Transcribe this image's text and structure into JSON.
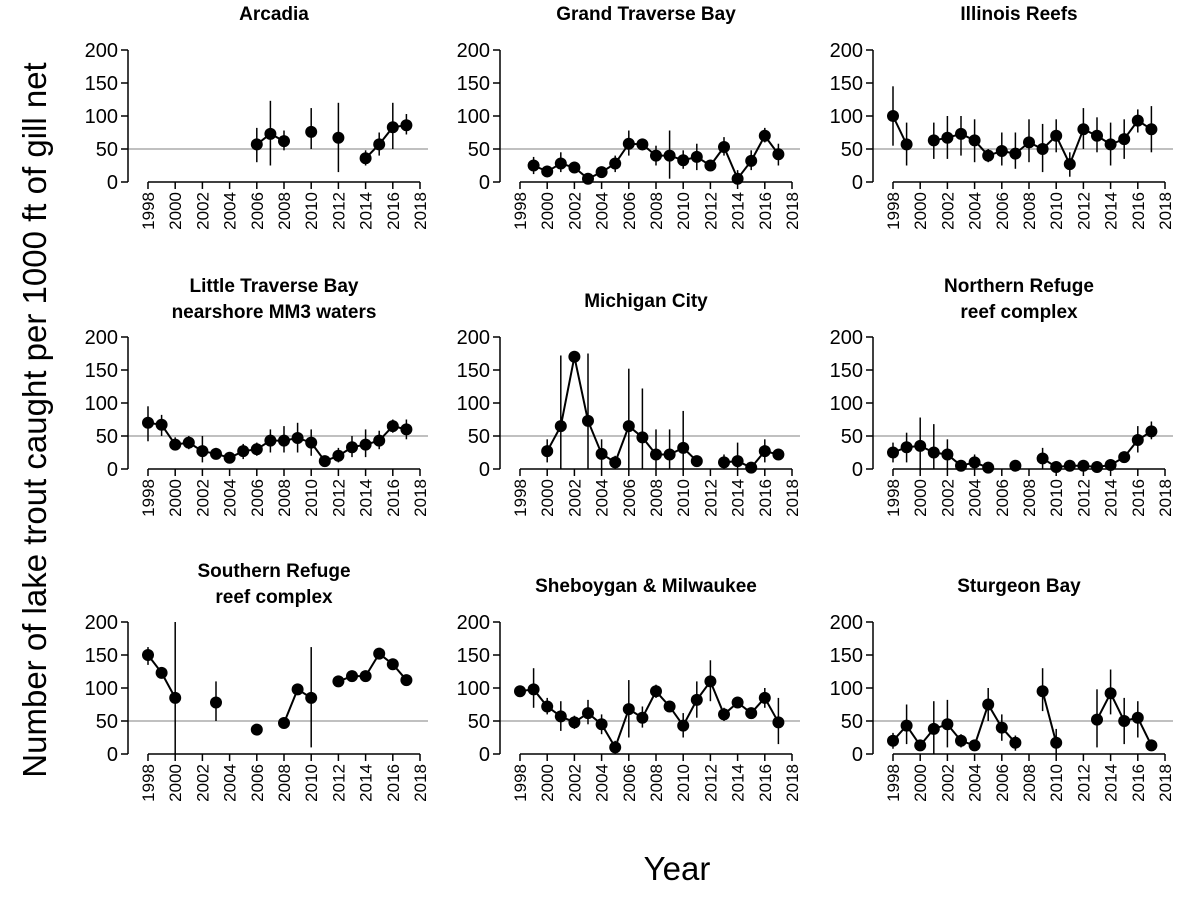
{
  "ylabel": "Number of lake trout caught per 1000 ft of gill net",
  "xlabel": "Year",
  "chart_data": [
    {
      "type": "line",
      "title": [
        "Arcadia"
      ],
      "color": "#000000",
      "hline": 50,
      "xlim": [
        1998,
        2018
      ],
      "ylim": [
        0,
        200
      ],
      "xticks": [
        1998,
        2000,
        2002,
        2004,
        2006,
        2008,
        2010,
        2012,
        2014,
        2016,
        2018
      ],
      "yticks": [
        0,
        50,
        100,
        150,
        200
      ],
      "x": [
        1998,
        1999,
        2000,
        2001,
        2002,
        2003,
        2004,
        2005,
        2006,
        2007,
        2008,
        2009,
        2010,
        2011,
        2012,
        2013,
        2014,
        2015,
        2016,
        2017
      ],
      "values": [
        null,
        null,
        null,
        null,
        null,
        null,
        null,
        null,
        57,
        73,
        62,
        null,
        76,
        null,
        67,
        null,
        36,
        57,
        83,
        86
      ],
      "lower": [
        null,
        null,
        null,
        null,
        null,
        null,
        null,
        null,
        30,
        25,
        48,
        null,
        50,
        null,
        15,
        null,
        25,
        40,
        50,
        72
      ],
      "upper": [
        null,
        null,
        null,
        null,
        null,
        null,
        null,
        null,
        82,
        123,
        78,
        null,
        112,
        null,
        120,
        null,
        48,
        75,
        120,
        103
      ]
    },
    {
      "type": "line",
      "title": [
        "Grand Traverse Bay"
      ],
      "color": "#000000",
      "hline": 50,
      "xlim": [
        1998,
        2018
      ],
      "ylim": [
        0,
        200
      ],
      "xticks": [
        1998,
        2000,
        2002,
        2004,
        2006,
        2008,
        2010,
        2012,
        2014,
        2016,
        2018
      ],
      "yticks": [
        0,
        50,
        100,
        150,
        200
      ],
      "x": [
        1998,
        1999,
        2000,
        2001,
        2002,
        2003,
        2004,
        2005,
        2006,
        2007,
        2008,
        2009,
        2010,
        2011,
        2012,
        2013,
        2014,
        2015,
        2016,
        2017
      ],
      "values": [
        null,
        25,
        16,
        28,
        22,
        5,
        15,
        28,
        58,
        57,
        40,
        40,
        33,
        38,
        25,
        53,
        5,
        32,
        70,
        42
      ],
      "lower": [
        null,
        12,
        8,
        15,
        18,
        2,
        8,
        15,
        40,
        48,
        25,
        5,
        20,
        18,
        18,
        40,
        0,
        18,
        60,
        25
      ],
      "upper": [
        null,
        38,
        25,
        45,
        28,
        8,
        22,
        40,
        78,
        65,
        55,
        78,
        48,
        58,
        32,
        68,
        18,
        48,
        82,
        58
      ]
    },
    {
      "type": "line",
      "title": [
        "Illinois Reefs"
      ],
      "color": "#000000",
      "hline": 50,
      "xlim": [
        1998,
        2018
      ],
      "ylim": [
        0,
        200
      ],
      "xticks": [
        1998,
        2000,
        2002,
        2004,
        2006,
        2008,
        2010,
        2012,
        2014,
        2016,
        2018
      ],
      "yticks": [
        0,
        50,
        100,
        150,
        200
      ],
      "x": [
        1998,
        1999,
        2000,
        2001,
        2002,
        2003,
        2004,
        2005,
        2006,
        2007,
        2008,
        2009,
        2010,
        2011,
        2012,
        2013,
        2014,
        2015,
        2016,
        2017
      ],
      "values": [
        100,
        57,
        null,
        63,
        67,
        73,
        63,
        40,
        47,
        43,
        60,
        50,
        70,
        27,
        80,
        70,
        57,
        65,
        93,
        80
      ],
      "lower": [
        55,
        25,
        null,
        35,
        35,
        40,
        30,
        30,
        25,
        20,
        30,
        15,
        45,
        8,
        50,
        45,
        25,
        35,
        75,
        45
      ],
      "upper": [
        145,
        90,
        null,
        90,
        100,
        100,
        95,
        50,
        75,
        75,
        95,
        88,
        95,
        45,
        112,
        98,
        90,
        95,
        110,
        115
      ]
    },
    {
      "type": "line",
      "title": [
        "Little Traverse Bay",
        "nearshore MM3 waters"
      ],
      "color": "#000000",
      "hline": 50,
      "xlim": [
        1998,
        2018
      ],
      "ylim": [
        0,
        200
      ],
      "xticks": [
        1998,
        2000,
        2002,
        2004,
        2006,
        2008,
        2010,
        2012,
        2014,
        2016,
        2018
      ],
      "yticks": [
        0,
        50,
        100,
        150,
        200
      ],
      "x": [
        1998,
        1999,
        2000,
        2001,
        2002,
        2003,
        2004,
        2005,
        2006,
        2007,
        2008,
        2009,
        2010,
        2011,
        2012,
        2013,
        2014,
        2015,
        2016,
        2017
      ],
      "values": [
        70,
        67,
        37,
        40,
        27,
        23,
        17,
        27,
        30,
        43,
        43,
        47,
        40,
        12,
        20,
        33,
        37,
        43,
        65,
        60
      ],
      "lower": [
        42,
        50,
        28,
        30,
        10,
        15,
        10,
        15,
        20,
        25,
        25,
        25,
        20,
        5,
        10,
        18,
        18,
        30,
        55,
        45
      ],
      "upper": [
        95,
        82,
        48,
        50,
        50,
        32,
        25,
        38,
        40,
        60,
        65,
        70,
        60,
        20,
        32,
        50,
        60,
        58,
        75,
        75
      ]
    },
    {
      "type": "line",
      "title": [
        "Michigan City"
      ],
      "color": "#000000",
      "hline": 50,
      "xlim": [
        1998,
        2018
      ],
      "ylim": [
        0,
        200
      ],
      "xticks": [
        1998,
        2000,
        2002,
        2004,
        2006,
        2008,
        2010,
        2012,
        2014,
        2016,
        2018
      ],
      "yticks": [
        0,
        50,
        100,
        150,
        200
      ],
      "x": [
        1998,
        1999,
        2000,
        2001,
        2002,
        2003,
        2004,
        2005,
        2006,
        2007,
        2008,
        2009,
        2010,
        2011,
        2012,
        2013,
        2014,
        2015,
        2016,
        2017
      ],
      "values": [
        null,
        null,
        27,
        65,
        170,
        73,
        23,
        10,
        65,
        48,
        22,
        22,
        32,
        12,
        null,
        10,
        12,
        2,
        27,
        22
      ],
      "lower": [
        null,
        null,
        10,
        0,
        168,
        0,
        0,
        0,
        0,
        0,
        0,
        0,
        0,
        5,
        null,
        0,
        0,
        0,
        10,
        15
      ],
      "upper": [
        null,
        null,
        45,
        172,
        172,
        175,
        45,
        20,
        152,
        122,
        60,
        60,
        88,
        20,
        null,
        22,
        40,
        5,
        45,
        30
      ]
    },
    {
      "type": "line",
      "title": [
        "Northern Refuge",
        "reef complex"
      ],
      "color": "#000000",
      "hline": 50,
      "xlim": [
        1998,
        2018
      ],
      "ylim": [
        0,
        200
      ],
      "xticks": [
        1998,
        2000,
        2002,
        2004,
        2006,
        2008,
        2010,
        2012,
        2014,
        2016,
        2018
      ],
      "yticks": [
        0,
        50,
        100,
        150,
        200
      ],
      "x": [
        1998,
        1999,
        2000,
        2001,
        2002,
        2003,
        2004,
        2005,
        2006,
        2007,
        2008,
        2009,
        2010,
        2011,
        2012,
        2013,
        2014,
        2015,
        2016,
        2017
      ],
      "values": [
        25,
        33,
        35,
        25,
        22,
        5,
        10,
        2,
        null,
        5,
        null,
        16,
        3,
        5,
        5,
        3,
        6,
        18,
        44,
        57
      ],
      "lower": [
        10,
        10,
        0,
        0,
        0,
        0,
        0,
        0,
        null,
        0,
        null,
        0,
        0,
        0,
        0,
        0,
        0,
        10,
        25,
        45
      ],
      "upper": [
        40,
        55,
        78,
        68,
        45,
        10,
        22,
        5,
        null,
        10,
        null,
        32,
        6,
        10,
        10,
        6,
        12,
        25,
        65,
        72
      ]
    },
    {
      "type": "line",
      "title": [
        "Southern Refuge",
        "reef complex"
      ],
      "color": "#000000",
      "hline": 50,
      "xlim": [
        1998,
        2018
      ],
      "ylim": [
        0,
        200
      ],
      "xticks": [
        1998,
        2000,
        2002,
        2004,
        2006,
        2008,
        2010,
        2012,
        2014,
        2016,
        2018
      ],
      "yticks": [
        0,
        50,
        100,
        150,
        200
      ],
      "x": [
        1998,
        1999,
        2000,
        2001,
        2002,
        2003,
        2004,
        2005,
        2006,
        2007,
        2008,
        2009,
        2010,
        2011,
        2012,
        2013,
        2014,
        2015,
        2016,
        2017
      ],
      "values": [
        150,
        123,
        85,
        null,
        null,
        78,
        null,
        null,
        37,
        null,
        47,
        98,
        85,
        null,
        110,
        118,
        118,
        152,
        136,
        112
      ],
      "lower": [
        135,
        115,
        0,
        null,
        null,
        50,
        null,
        null,
        32,
        null,
        40,
        95,
        10,
        null,
        105,
        115,
        112,
        148,
        130,
        105
      ],
      "upper": [
        162,
        130,
        200,
        null,
        null,
        110,
        null,
        null,
        42,
        null,
        55,
        100,
        162,
        null,
        115,
        122,
        125,
        156,
        142,
        118
      ]
    },
    {
      "type": "line",
      "title": [
        "Sheboygan & Milwaukee"
      ],
      "color": "#000000",
      "hline": 50,
      "xlim": [
        1998,
        2018
      ],
      "ylim": [
        0,
        200
      ],
      "xticks": [
        1998,
        2000,
        2002,
        2004,
        2006,
        2008,
        2010,
        2012,
        2014,
        2016,
        2018
      ],
      "yticks": [
        0,
        50,
        100,
        150,
        200
      ],
      "x": [
        1998,
        1999,
        2000,
        2001,
        2002,
        2003,
        2004,
        2005,
        2006,
        2007,
        2008,
        2009,
        2010,
        2011,
        2012,
        2013,
        2014,
        2015,
        2016,
        2017
      ],
      "values": [
        95,
        98,
        72,
        57,
        48,
        62,
        45,
        10,
        68,
        55,
        95,
        72,
        43,
        82,
        110,
        60,
        78,
        62,
        85,
        48
      ],
      "lower": [
        90,
        70,
        60,
        35,
        38,
        45,
        30,
        0,
        25,
        40,
        85,
        65,
        25,
        55,
        80,
        50,
        72,
        55,
        70,
        15
      ],
      "upper": [
        100,
        130,
        85,
        80,
        58,
        82,
        60,
        20,
        112,
        72,
        105,
        80,
        62,
        110,
        142,
        70,
        85,
        70,
        100,
        85
      ]
    },
    {
      "type": "line",
      "title": [
        "Sturgeon Bay"
      ],
      "color": "#000000",
      "hline": 50,
      "xlim": [
        1998,
        2018
      ],
      "ylim": [
        0,
        200
      ],
      "xticks": [
        1998,
        2000,
        2002,
        2004,
        2006,
        2008,
        2010,
        2012,
        2014,
        2016,
        2018
      ],
      "yticks": [
        0,
        50,
        100,
        150,
        200
      ],
      "x": [
        1998,
        1999,
        2000,
        2001,
        2002,
        2003,
        2004,
        2005,
        2006,
        2007,
        2008,
        2009,
        2010,
        2011,
        2012,
        2013,
        2014,
        2015,
        2016,
        2017
      ],
      "values": [
        20,
        43,
        13,
        38,
        45,
        20,
        13,
        75,
        40,
        17,
        null,
        95,
        17,
        null,
        null,
        52,
        92,
        50,
        55,
        13
      ],
      "lower": [
        8,
        15,
        5,
        0,
        10,
        10,
        8,
        50,
        20,
        5,
        null,
        65,
        0,
        null,
        null,
        10,
        60,
        15,
        25,
        5
      ],
      "upper": [
        32,
        75,
        22,
        80,
        82,
        30,
        20,
        100,
        60,
        28,
        null,
        130,
        38,
        null,
        null,
        98,
        128,
        85,
        80,
        22
      ]
    }
  ]
}
